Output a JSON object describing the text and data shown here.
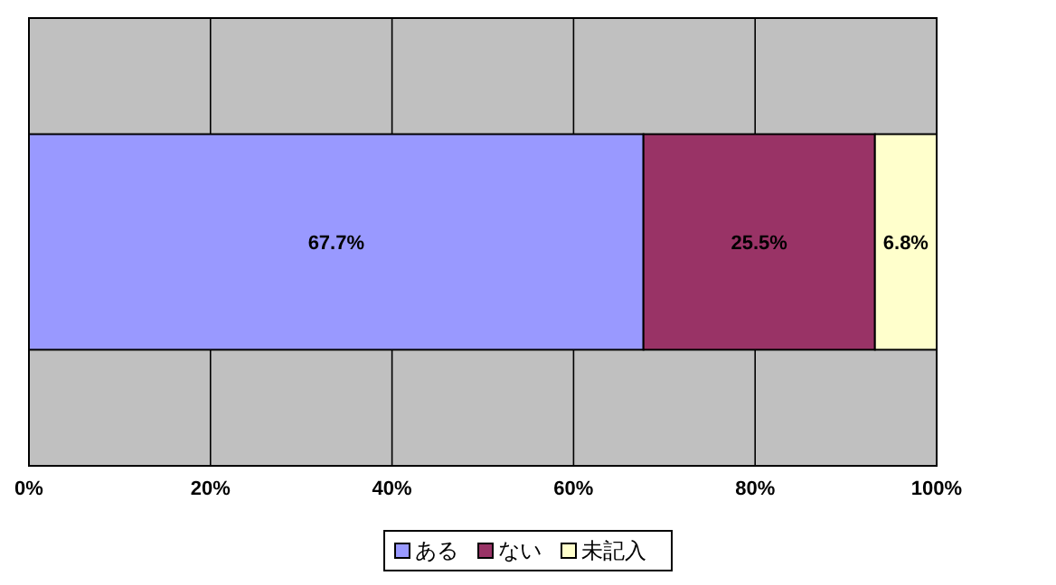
{
  "chart_data": {
    "type": "bar",
    "orientation": "horizontal",
    "stacked": true,
    "categories": [
      null
    ],
    "series": [
      {
        "name": "ある",
        "color": "#9999ff",
        "values": [
          67.7
        ],
        "value_labels": [
          "67.7%"
        ]
      },
      {
        "name": "ない",
        "color": "#993366",
        "values": [
          25.5
        ],
        "value_labels": [
          "25.5%"
        ]
      },
      {
        "name": "未記入",
        "color": "#ffffcc",
        "values": [
          6.8
        ],
        "value_labels": [
          "6.8%"
        ]
      }
    ],
    "xlim": [
      0,
      100
    ],
    "xticks": [
      {
        "value": 0,
        "label": "0%"
      },
      {
        "value": 20,
        "label": "20%"
      },
      {
        "value": 40,
        "label": "40%"
      },
      {
        "value": 60,
        "label": "60%"
      },
      {
        "value": 80,
        "label": "80%"
      },
      {
        "value": 100,
        "label": "100%"
      }
    ],
    "grid": "x",
    "legend": "bottom"
  }
}
